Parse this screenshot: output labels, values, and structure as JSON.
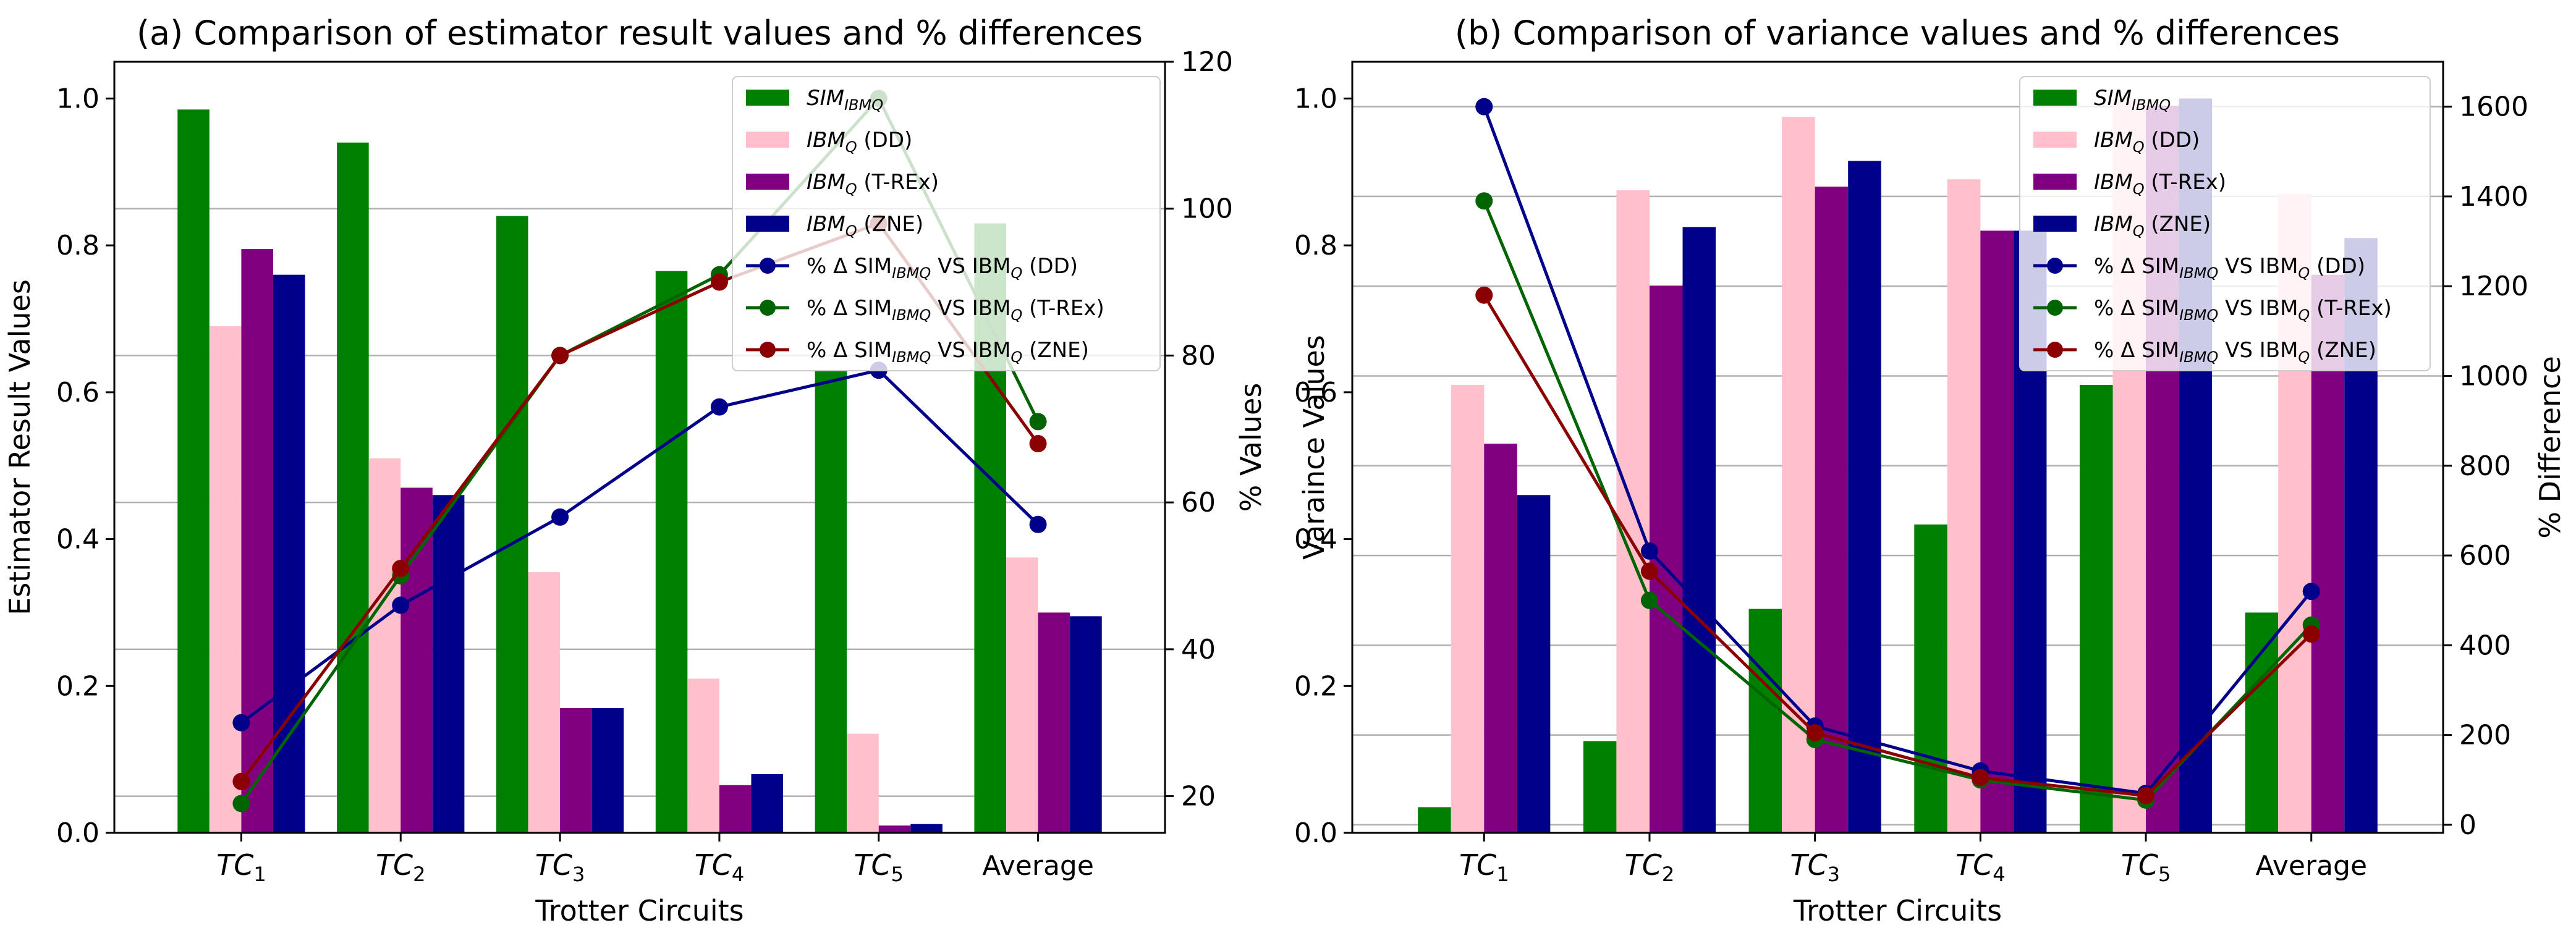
{
  "chart_data": [
    {
      "type": "bar",
      "title": "(a) Comparison of estimator result values and % differences",
      "xlabel": "Trotter Circuits",
      "ylabel": "Estimator Result Values",
      "y2label": "% Values",
      "ylim": [
        0,
        1.05
      ],
      "y2lim": [
        15,
        120
      ],
      "yticks": [
        "0.0",
        "0.2",
        "0.4",
        "0.6",
        "0.8",
        "1.0"
      ],
      "y2ticks": [
        "20",
        "40",
        "60",
        "80",
        "100",
        "120"
      ],
      "categories": [
        "TC1",
        "TC2",
        "TC3",
        "TC4",
        "TC5",
        "Average"
      ],
      "category_labels": [
        {
          "base": "TC",
          "sub": "1"
        },
        {
          "base": "TC",
          "sub": "2"
        },
        {
          "base": "TC",
          "sub": "3"
        },
        {
          "base": "TC",
          "sub": "4"
        },
        {
          "base": "TC",
          "sub": "5"
        },
        {
          "base": "Average",
          "sub": ""
        }
      ],
      "legend_position": "top-right",
      "gridlines": "right-axis",
      "series": [
        {
          "name": "SIM_IBMQ",
          "label_base": "SIM",
          "label_sub": "IBMQ",
          "label_rest": "",
          "kind": "bar",
          "color": "#008000",
          "values": [
            0.985,
            0.94,
            0.84,
            0.765,
            0.63,
            0.83
          ]
        },
        {
          "name": "IBM_Q (DD)",
          "label_base": "IBM",
          "label_sub": "Q",
          "label_rest": " (DD)",
          "kind": "bar",
          "color": "#ffc0cb",
          "values": [
            0.69,
            0.51,
            0.355,
            0.21,
            0.135,
            0.375
          ]
        },
        {
          "name": "IBM_Q (T-REx)",
          "label_base": "IBM",
          "label_sub": "Q",
          "label_rest": " (T-REx)",
          "kind": "bar",
          "color": "#800080",
          "values": [
            0.795,
            0.47,
            0.17,
            0.065,
            0.01,
            0.3
          ]
        },
        {
          "name": "IBM_Q (ZNE)",
          "label_base": "IBM",
          "label_sub": "Q",
          "label_rest": " (ZNE)",
          "kind": "bar",
          "color": "#00008b",
          "values": [
            0.76,
            0.46,
            0.17,
            0.08,
            0.012,
            0.295
          ]
        },
        {
          "name": "% Δ SIM_IBMQ VS IBM_Q (DD)",
          "label_base": "% Δ SIM",
          "label_sub": "IBMQ",
          "label_mid": " VS IBM",
          "label_sub2": "Q",
          "label_rest": " (DD)",
          "kind": "line",
          "axis": "right",
          "color": "#00008b",
          "values": [
            30,
            46,
            58,
            73,
            78,
            57
          ]
        },
        {
          "name": "% Δ SIM_IBMQ VS IBM_Q (T-REx)",
          "label_base": "% Δ SIM",
          "label_sub": "IBMQ",
          "label_mid": " VS IBM",
          "label_sub2": "Q",
          "label_rest": " (T-REx)",
          "kind": "line",
          "axis": "right",
          "color": "#006400",
          "values": [
            19,
            50,
            80,
            91,
            115,
            71
          ]
        },
        {
          "name": "% Δ SIM_IBMQ VS IBM_Q (ZNE)",
          "label_base": "% Δ SIM",
          "label_sub": "IBMQ",
          "label_mid": " VS IBM",
          "label_sub2": "Q",
          "label_rest": " (ZNE)",
          "kind": "line",
          "axis": "right",
          "color": "#8b0000",
          "values": [
            22,
            51,
            80,
            90,
            98,
            68
          ]
        }
      ]
    },
    {
      "type": "bar",
      "title": "(b) Comparison of variance values and % differences",
      "xlabel": "Trotter Circuits",
      "ylabel": "Varaince Values",
      "y2label": "% Difference",
      "ylim": [
        0,
        1.05
      ],
      "y2lim": [
        -18,
        1700
      ],
      "yticks": [
        "0.0",
        "0.2",
        "0.4",
        "0.6",
        "0.8",
        "1.0"
      ],
      "y2ticks": [
        "0",
        "200",
        "400",
        "600",
        "800",
        "1000",
        "1200",
        "1400",
        "1600"
      ],
      "categories": [
        "TC1",
        "TC2",
        "TC3",
        "TC4",
        "TC5",
        "Average"
      ],
      "category_labels": [
        {
          "base": "TC",
          "sub": "1"
        },
        {
          "base": "TC",
          "sub": "2"
        },
        {
          "base": "TC",
          "sub": "3"
        },
        {
          "base": "TC",
          "sub": "4"
        },
        {
          "base": "TC",
          "sub": "5"
        },
        {
          "base": "Average",
          "sub": ""
        }
      ],
      "legend_position": "top-right",
      "gridlines": "right-axis",
      "series": [
        {
          "name": "SIM_IBMQ",
          "label_base": "SIM",
          "label_sub": "IBMQ",
          "label_rest": "",
          "kind": "bar",
          "color": "#008000",
          "values": [
            0.035,
            0.125,
            0.305,
            0.42,
            0.61,
            0.3
          ]
        },
        {
          "name": "IBM_Q (DD)",
          "label_base": "IBM",
          "label_sub": "Q",
          "label_rest": " (DD)",
          "kind": "bar",
          "color": "#ffc0cb",
          "values": [
            0.61,
            0.875,
            0.975,
            0.89,
            1.0,
            0.87
          ]
        },
        {
          "name": "IBM_Q (T-REx)",
          "label_base": "IBM",
          "label_sub": "Q",
          "label_rest": " (T-REx)",
          "kind": "bar",
          "color": "#800080",
          "values": [
            0.53,
            0.745,
            0.88,
            0.82,
            0.99,
            0.76
          ]
        },
        {
          "name": "IBM_Q (ZNE)",
          "label_base": "IBM",
          "label_sub": "Q",
          "label_rest": " (ZNE)",
          "kind": "bar",
          "color": "#00008b",
          "values": [
            0.46,
            0.825,
            0.915,
            0.82,
            1.0,
            0.81
          ]
        },
        {
          "name": "% Δ SIM_IBMQ VS IBM_Q (DD)",
          "label_base": "% Δ SIM",
          "label_sub": "IBMQ",
          "label_mid": " VS IBM",
          "label_sub2": "Q",
          "label_rest": " (DD)",
          "kind": "line",
          "axis": "right",
          "color": "#00008b",
          "values": [
            1600,
            610,
            220,
            120,
            70,
            520
          ]
        },
        {
          "name": "% Δ SIM_IBMQ VS IBM_Q (T-REx)",
          "label_base": "% Δ SIM",
          "label_sub": "IBMQ",
          "label_mid": " VS IBM",
          "label_sub2": "Q",
          "label_rest": " (T-REx)",
          "kind": "line",
          "axis": "right",
          "color": "#006400",
          "values": [
            1390,
            500,
            190,
            100,
            55,
            445
          ]
        },
        {
          "name": "% Δ SIM_IBMQ VS IBM_Q (ZNE)",
          "label_base": "% Δ SIM",
          "label_sub": "IBMQ",
          "label_mid": " VS IBM",
          "label_sub2": "Q",
          "label_rest": " (ZNE)",
          "kind": "line",
          "axis": "right",
          "color": "#8b0000",
          "values": [
            1180,
            565,
            205,
            105,
            65,
            425
          ]
        }
      ]
    }
  ]
}
